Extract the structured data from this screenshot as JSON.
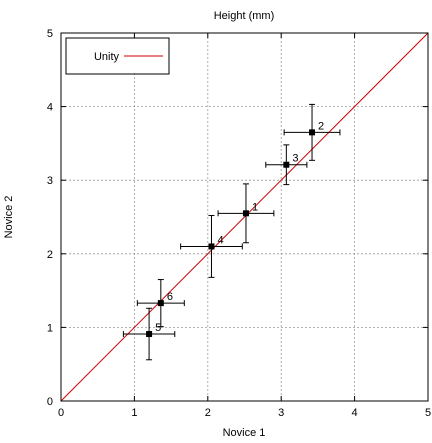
{
  "chart_data": {
    "type": "scatter",
    "title": "Height (mm)",
    "xlabel": "Novice 1",
    "ylabel": "Novice 2",
    "xlim": [
      0,
      5
    ],
    "ylim": [
      0,
      5
    ],
    "x_ticks": [
      "0",
      "1",
      "2",
      "3",
      "4",
      "5"
    ],
    "y_ticks": [
      "0",
      "1",
      "2",
      "3",
      "4",
      "5"
    ],
    "grid": true,
    "legend": {
      "position": "top-left",
      "entries": [
        {
          "label": "Unity",
          "color": "#cc0000"
        }
      ]
    },
    "reference_line": {
      "name": "Unity",
      "x": [
        0,
        5
      ],
      "y": [
        0,
        5
      ],
      "color": "#cc0000"
    },
    "points": [
      {
        "label": "1",
        "x": 2.52,
        "y": 2.55,
        "x_err": 0.38,
        "y_err": 0.4
      },
      {
        "label": "2",
        "x": 3.42,
        "y": 3.65,
        "x_err": 0.38,
        "y_err": 0.38
      },
      {
        "label": "3",
        "x": 3.07,
        "y": 3.21,
        "x_err": 0.28,
        "y_err": 0.27
      },
      {
        "label": "4",
        "x": 2.05,
        "y": 2.1,
        "x_err": 0.42,
        "y_err": 0.42
      },
      {
        "label": "5",
        "x": 1.2,
        "y": 0.91,
        "x_err": 0.35,
        "y_err": 0.35
      },
      {
        "label": "6",
        "x": 1.36,
        "y": 1.33,
        "x_err": 0.32,
        "y_err": 0.32
      }
    ],
    "marker_color": "#000000"
  }
}
